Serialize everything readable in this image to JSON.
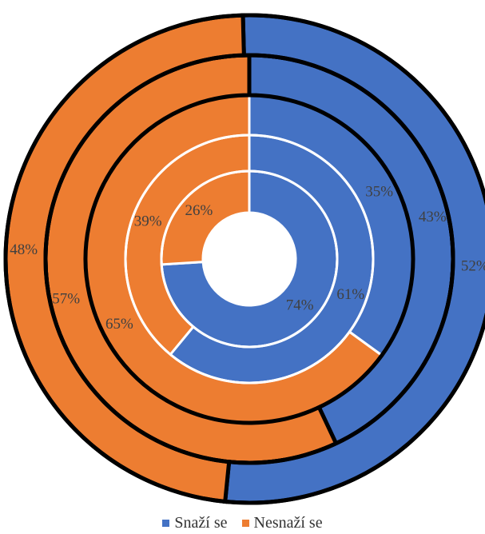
{
  "chart_data": {
    "type": "doughnut",
    "title": "",
    "categories": [
      "Snaží se",
      "Nesnaží se"
    ],
    "colors": [
      "#4472C4",
      "#ED7D31"
    ],
    "rings": [
      {
        "values": [
          74,
          26
        ],
        "labels": [
          "74%",
          "26%"
        ]
      },
      {
        "values": [
          61,
          39
        ],
        "labels": [
          "61%",
          "39%"
        ]
      },
      {
        "values": [
          35,
          65
        ],
        "labels": [
          "35%",
          "65%"
        ]
      },
      {
        "values": [
          43,
          57
        ],
        "labels": [
          "43%",
          "57%"
        ]
      },
      {
        "values": [
          52,
          48
        ],
        "labels": [
          "52%",
          "48%"
        ]
      }
    ],
    "legend_position": "bottom"
  },
  "legend": {
    "items": [
      {
        "label": "Snaží se",
        "color": "#4472C4"
      },
      {
        "label": "Nesnaží se",
        "color": "#ED7D31"
      }
    ]
  }
}
